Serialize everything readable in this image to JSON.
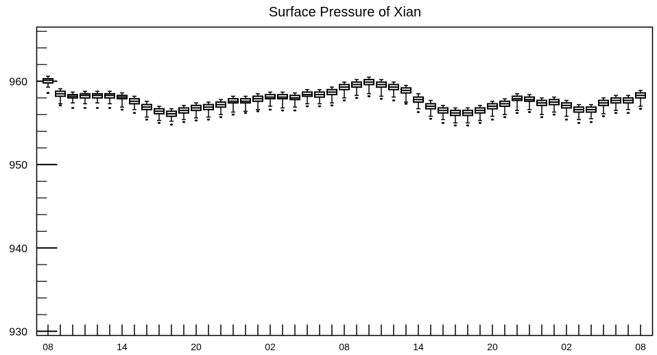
{
  "chart_data": {
    "type": "box",
    "title": "Surface Pressure of Xian",
    "xlabel": "",
    "ylabel": "",
    "ylim": [
      929.5,
      966.5
    ],
    "y_ticks": [
      930,
      940,
      950,
      960
    ],
    "y_tick_labels": [
      "930",
      "940",
      "950",
      "960"
    ],
    "x_tick_labels": [
      "08",
      "14",
      "20",
      "02",
      "08",
      "14",
      "20",
      "02",
      "08"
    ],
    "x_tick_positions": [
      0,
      6,
      12,
      18,
      24,
      30,
      36,
      42,
      48
    ],
    "grid": false,
    "series": [
      {
        "medians": [
          960.1,
          958.5,
          958.2,
          958.3,
          958.3,
          958.3,
          958.1,
          957.6,
          956.9,
          956.4,
          956.1,
          956.5,
          956.8,
          956.9,
          957.2,
          957.6,
          957.6,
          957.9,
          958.1,
          958.1,
          958.0,
          958.4,
          958.4,
          958.7,
          959.3,
          959.6,
          959.9,
          959.6,
          959.3,
          958.9,
          957.8,
          957.0,
          956.5,
          956.2,
          956.2,
          956.5,
          957.0,
          957.3,
          957.9,
          957.8,
          957.4,
          957.5,
          957.1,
          956.6,
          956.6,
          957.4,
          957.7,
          957.7,
          958.3
        ],
        "q1": [
          959.8,
          958.2,
          958.0,
          958.0,
          958.0,
          958.0,
          957.9,
          957.3,
          956.6,
          956.1,
          955.8,
          956.2,
          956.5,
          956.6,
          956.9,
          957.4,
          957.4,
          957.6,
          957.9,
          957.9,
          957.8,
          958.2,
          958.1,
          958.4,
          959.0,
          959.3,
          959.6,
          959.3,
          959.0,
          958.6,
          957.5,
          956.7,
          956.2,
          955.9,
          955.9,
          956.2,
          956.7,
          957.0,
          957.7,
          957.6,
          957.1,
          957.2,
          956.8,
          956.3,
          956.3,
          957.1,
          957.4,
          957.4,
          958.0
        ],
        "q3": [
          960.3,
          958.8,
          958.4,
          958.5,
          958.5,
          958.5,
          958.3,
          957.9,
          957.2,
          956.7,
          956.4,
          956.8,
          957.1,
          957.2,
          957.5,
          957.9,
          957.9,
          958.2,
          958.4,
          958.4,
          958.3,
          958.7,
          958.7,
          959.0,
          959.6,
          959.9,
          960.2,
          959.9,
          959.6,
          959.2,
          958.1,
          957.3,
          956.8,
          956.5,
          956.5,
          956.8,
          957.3,
          957.6,
          958.2,
          958.1,
          957.7,
          957.8,
          957.4,
          956.9,
          956.9,
          957.7,
          958.0,
          958.0,
          958.6
        ],
        "whisker_low": [
          959.3,
          957.3,
          957.4,
          957.3,
          957.4,
          957.3,
          956.9,
          956.6,
          955.7,
          955.3,
          955.2,
          955.4,
          955.6,
          955.7,
          956.0,
          956.3,
          956.4,
          956.6,
          957.0,
          956.8,
          956.9,
          957.3,
          957.3,
          957.4,
          958.0,
          958.3,
          958.5,
          958.2,
          958.1,
          957.5,
          956.7,
          955.8,
          955.4,
          955.0,
          955.0,
          955.3,
          955.8,
          956.0,
          956.5,
          956.6,
          956.0,
          956.3,
          955.8,
          955.4,
          955.5,
          956.1,
          956.5,
          956.6,
          957.0
        ],
        "whisker_high": [
          960.6,
          959.1,
          958.7,
          958.8,
          958.8,
          958.8,
          958.6,
          958.2,
          957.6,
          957.0,
          956.7,
          957.1,
          957.4,
          957.5,
          957.8,
          958.2,
          958.2,
          958.5,
          958.7,
          958.7,
          958.6,
          959.0,
          959.0,
          959.3,
          959.9,
          960.2,
          960.5,
          960.2,
          959.9,
          959.5,
          958.5,
          957.7,
          957.1,
          956.8,
          956.8,
          957.1,
          957.6,
          957.9,
          958.5,
          958.4,
          958.0,
          958.1,
          957.7,
          957.2,
          957.2,
          958.0,
          958.3,
          958.3,
          958.9
        ],
        "outliers": [
          958.6,
          957.1,
          956.8,
          956.8,
          956.8,
          956.8,
          956.6,
          956.2,
          955.4,
          955.0,
          954.8,
          955.1,
          955.3,
          955.4,
          955.7,
          956.0,
          956.2,
          956.4,
          956.6,
          956.5,
          956.5,
          957.0,
          957.0,
          957.1,
          957.7,
          958.0,
          958.2,
          957.9,
          957.7,
          957.3,
          956.3,
          955.5,
          955.0,
          954.7,
          954.7,
          955.0,
          955.4,
          955.7,
          956.2,
          956.3,
          955.7,
          956.0,
          955.4,
          955.0,
          955.1,
          955.8,
          956.2,
          956.2,
          956.7
        ]
      }
    ]
  }
}
